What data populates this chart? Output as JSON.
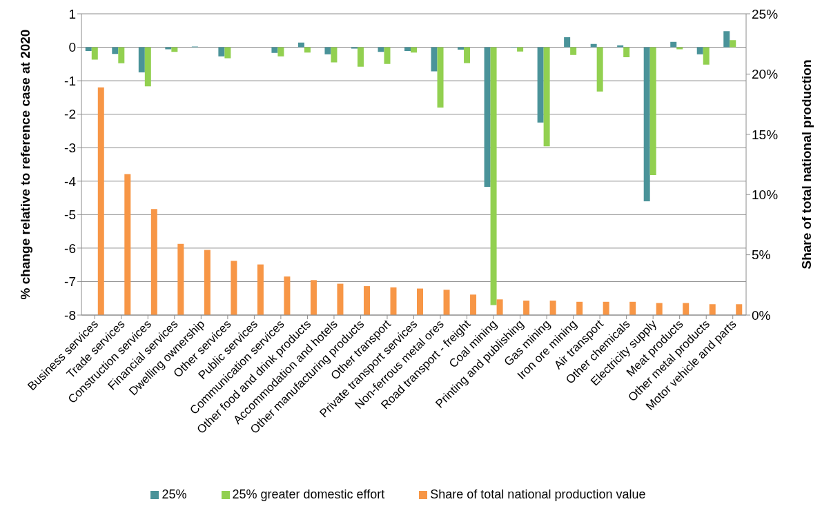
{
  "chart_data": {
    "type": "bar",
    "ylabel": "% change relative to reference case at 2020",
    "y2label": "Share of total national production",
    "categories": [
      "Business services",
      "Trade services",
      "Construction services",
      "Financial services",
      "Dwelling ownership",
      "Other services",
      "Public services",
      "Communication services",
      "Other food and drink products",
      "Accommodation and hotels",
      "Other manufacturing products",
      "Other transport",
      "Private transport services",
      "Non-ferrous metal ores",
      "Road transport - freight",
      "Coal mining",
      "Printing and publishing",
      "Gas mining",
      "Iron ore mining",
      "Air transport",
      "Other chemicals",
      "Electricity supply",
      "Meat products",
      "Other metal products",
      "Motor vehicle and parts"
    ],
    "series": [
      {
        "name": "25%",
        "color": "#4a9399",
        "values": [
          -0.11,
          -0.2,
          -0.75,
          -0.06,
          0.02,
          -0.27,
          0,
          -0.17,
          0.14,
          -0.21,
          -0.04,
          -0.14,
          -0.11,
          -0.72,
          -0.07,
          -4.17,
          0.01,
          -2.25,
          0.3,
          0.1,
          0.06,
          -4.6,
          0.16,
          -0.21,
          0.48
        ]
      },
      {
        "name": "25% greater domestic effort",
        "color": "#92d050",
        "values": [
          -0.37,
          -0.48,
          -1.17,
          -0.14,
          null,
          -0.33,
          0,
          -0.27,
          -0.16,
          -0.45,
          -0.58,
          -0.5,
          -0.16,
          -1.8,
          -0.47,
          -7.7,
          -0.13,
          -2.96,
          -0.23,
          -1.32,
          -0.3,
          -3.82,
          -0.06,
          -0.52,
          0.21
        ]
      },
      {
        "name": "Share of total national production value",
        "color": "#f79646",
        "axis": "y2",
        "values": [
          18.9,
          11.7,
          8.8,
          5.9,
          5.4,
          4.5,
          4.2,
          3.2,
          2.9,
          2.6,
          2.4,
          2.3,
          2.2,
          2.1,
          1.7,
          1.3,
          1.2,
          1.2,
          1.1,
          1.1,
          1.1,
          1.0,
          1.0,
          0.9,
          0.9
        ]
      }
    ],
    "ylim": [
      -8,
      1
    ],
    "yticks": [
      -8,
      -7,
      -6,
      -5,
      -4,
      -3,
      -2,
      -1,
      0,
      1
    ],
    "y2lim": [
      0,
      25
    ],
    "y2ticks": [
      {
        "value": 0,
        "label": "0%"
      },
      {
        "value": 5,
        "label": "5%"
      },
      {
        "value": 10,
        "label": "10%"
      },
      {
        "value": 15,
        "label": "15%"
      },
      {
        "value": 20,
        "label": "20%"
      },
      {
        "value": 25,
        "label": "25%"
      }
    ],
    "grid": "y",
    "legend": "bottom"
  }
}
